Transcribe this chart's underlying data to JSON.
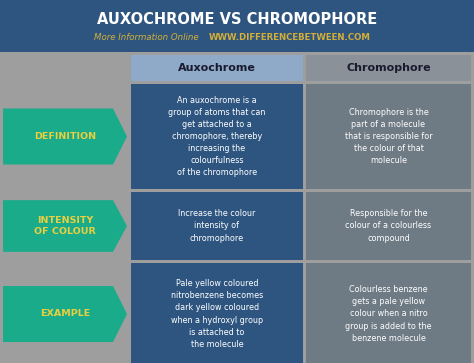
{
  "title": "AUXOCHROME VS CHROMOPHORE",
  "subtitle_plain": "More Information Online",
  "subtitle_url": "WWW.DIFFERENCEBETWEEN.COM",
  "header_col1": "Auxochrome",
  "header_col2": "Chromophore",
  "rows": [
    {
      "label": "DEFINITION",
      "col1": "An auxochrome is a\ngroup of atoms that can\nget attached to a\nchromophore, thereby\nincreasing the\ncolourfulness\nof the chromophore",
      "col2": "Chromophore is the\npart of a molecule\nthat is responsible for\nthe colour of that\nmolecule"
    },
    {
      "label": "INTENSITY\nOF COLOUR",
      "col1": "Increase the colour\nintensity of\nchromophore",
      "col2": "Responsible for the\ncolour of a colourless\ncompound"
    },
    {
      "label": "EXAMPLE",
      "col1": "Pale yellow coloured\nnitrobenzene becomes\ndark yellow coloured\nwhen a hydroxyl group\nis attached to\nthe molecule",
      "col2": "Colourless benzene\ngets a pale yellow\ncolour when a nitro\ngroup is added to the\nbenzene molecule"
    }
  ],
  "bg_color": "#9e9e9e",
  "header_bg": "#2d5580",
  "title_color": "#ffffff",
  "subtitle_plain_color": "#d4af37",
  "subtitle_url_color": "#d4af37",
  "col1_bg": "#2d5580",
  "col2_bg": "#6e7a84",
  "col1_header_bg": "#8faac8",
  "col2_header_bg": "#8a9198",
  "label_bg": "#1aab8a",
  "label_text_color": "#e8d040",
  "cell_text_color": "#ffffff",
  "header_text_color": "#1a1a2e"
}
